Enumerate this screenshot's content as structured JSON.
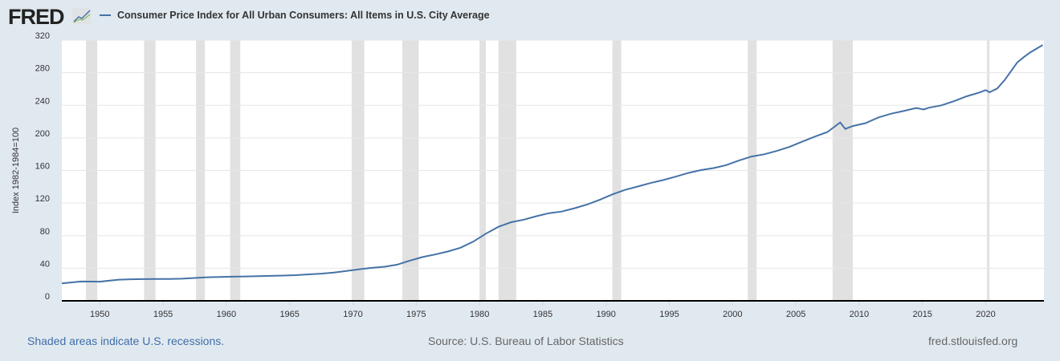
{
  "header": {
    "logo": "FRED",
    "logo_icon": "line-chart-icon"
  },
  "footer": {
    "recession_note": "Shaded areas indicate U.S. recessions.",
    "source": "Source: U.S. Bureau of Labor Statistics",
    "site": "fred.stlouisfed.org"
  },
  "colors": {
    "line": "#4572a7",
    "recession": "#e1e1e1",
    "background": "#e1e9f0",
    "link": "#3e6ea9"
  },
  "chart_data": {
    "type": "line",
    "title": "",
    "legend": [
      "Consumer Price Index for All Urban Consumers: All Items in U.S. City Average"
    ],
    "legend_placement": "top-left",
    "ylabel": "Index 1982-1984=100",
    "xlabel": "",
    "ylim": [
      0,
      320
    ],
    "xlim": [
      1947,
      2024.6
    ],
    "yticks": [
      0,
      40,
      80,
      120,
      160,
      200,
      240,
      280,
      320
    ],
    "xticks": [
      1950,
      1955,
      1960,
      1965,
      1970,
      1975,
      1980,
      1985,
      1990,
      1995,
      2000,
      2005,
      2010,
      2015,
      2020
    ],
    "grid": "horizontal",
    "recessions": [
      [
        1948.9,
        1949.8
      ],
      [
        1953.5,
        1954.4
      ],
      [
        1957.6,
        1958.3
      ],
      [
        1960.3,
        1961.1
      ],
      [
        1969.9,
        1970.9
      ],
      [
        1973.9,
        1975.2
      ],
      [
        1980.0,
        1980.5
      ],
      [
        1981.5,
        1982.9
      ],
      [
        1990.5,
        1991.2
      ],
      [
        2001.2,
        2001.9
      ],
      [
        2007.9,
        2009.5
      ],
      [
        2020.1,
        2020.3
      ]
    ],
    "series": [
      {
        "name": "Consumer Price Index for All Urban Consumers: All Items in U.S. City Average",
        "x": [
          1947.0,
          1948.5,
          1949.5,
          1950.0,
          1951.5,
          1952.5,
          1953.5,
          1954.5,
          1955.5,
          1956.5,
          1957.5,
          1958.5,
          1959.5,
          1960.5,
          1961.5,
          1962.5,
          1963.5,
          1964.5,
          1965.5,
          1966.5,
          1967.5,
          1968.5,
          1969.5,
          1970.5,
          1971.5,
          1972.5,
          1973.5,
          1974.5,
          1975.5,
          1976.5,
          1977.5,
          1978.5,
          1979.5,
          1980.5,
          1981.5,
          1982.5,
          1983.5,
          1984.5,
          1985.5,
          1986.5,
          1987.5,
          1988.5,
          1989.5,
          1990.5,
          1991.5,
          1992.5,
          1993.5,
          1994.5,
          1995.5,
          1996.5,
          1997.5,
          1998.5,
          1999.5,
          2000.5,
          2001.5,
          2002.5,
          2003.5,
          2004.5,
          2005.5,
          2006.5,
          2007.5,
          2008.5,
          2008.9,
          2009.5,
          2010.5,
          2011.5,
          2012.5,
          2013.5,
          2014.5,
          2015.1,
          2015.5,
          2016.5,
          2017.5,
          2018.5,
          2019.5,
          2020.0,
          2020.3,
          2020.9,
          2021.5,
          2022.5,
          2023.0,
          2023.5,
          2024.5
        ],
        "y": [
          21.5,
          23.7,
          23.6,
          23.5,
          26.0,
          26.5,
          26.7,
          26.9,
          26.8,
          27.2,
          28.1,
          28.9,
          29.2,
          29.6,
          29.9,
          30.3,
          30.6,
          31.0,
          31.5,
          32.5,
          33.4,
          34.8,
          36.7,
          38.8,
          40.5,
          41.8,
          44.4,
          49.3,
          53.8,
          56.9,
          60.6,
          65.2,
          72.6,
          82.4,
          90.9,
          96.5,
          99.6,
          103.9,
          107.6,
          109.6,
          113.6,
          118.3,
          124.0,
          130.7,
          136.2,
          140.3,
          144.5,
          148.2,
          152.4,
          156.9,
          160.5,
          163.0,
          166.6,
          172.2,
          177.1,
          179.9,
          184.0,
          188.9,
          195.3,
          201.6,
          207.3,
          219.0,
          211.0,
          214.5,
          218.1,
          224.9,
          229.6,
          233.0,
          236.7,
          234.8,
          237.0,
          240.0,
          245.1,
          251.1,
          255.7,
          258.7,
          256.0,
          260.5,
          271.0,
          292.7,
          299.0,
          304.7,
          314.0
        ]
      }
    ]
  }
}
